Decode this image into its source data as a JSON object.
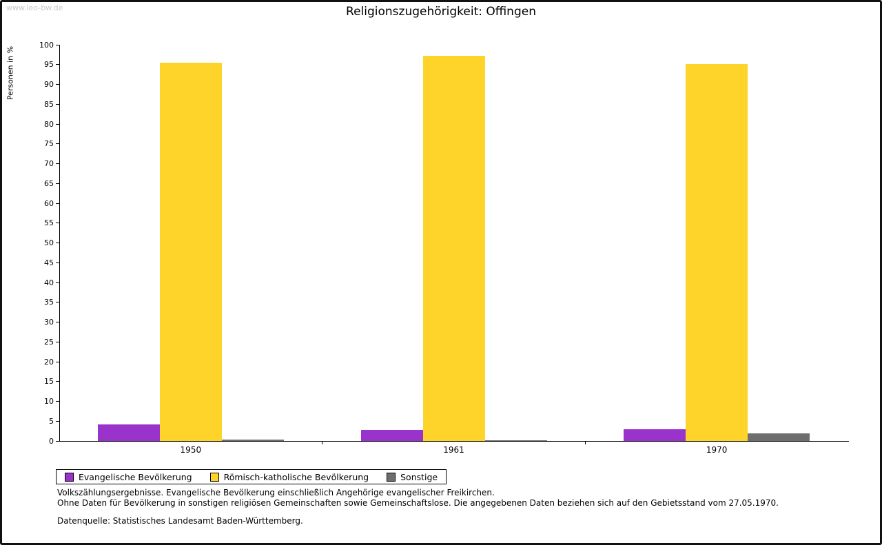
{
  "watermark": "www.leo-bw.de",
  "title": "Religionszugehörigkeit: Offingen",
  "chart_data": {
    "type": "bar",
    "title": "Religionszugehörigkeit: Offingen",
    "xlabel": "",
    "ylabel": "Personen in %",
    "ylim": [
      0,
      100
    ],
    "ytick_step": 5,
    "grid": false,
    "legend_position": "bottom",
    "categories": [
      "1950",
      "1961",
      "1970"
    ],
    "series": [
      {
        "name": "Evangelische Bevölkerung",
        "color": "#9933CC",
        "values": [
          4.2,
          2.7,
          2.9
        ]
      },
      {
        "name": "Römisch-katholische Bevölkerung",
        "color": "#FFD42A",
        "values": [
          95.5,
          97.2,
          95.2
        ]
      },
      {
        "name": "Sonstige",
        "color": "#6E6E6E",
        "values": [
          0.4,
          0.1,
          1.9
        ]
      }
    ]
  },
  "footnotes": {
    "line1": "Volkszählungsergebnisse. Evangelische Bevölkerung einschließlich Angehörige evangelischer Freikirchen.",
    "line2": "Ohne Daten für Bevölkerung in sonstigen religiösen Gemeinschaften sowie Gemeinschaftslose. Die angegebenen Daten beziehen sich auf den Gebietsstand vom 27.05.1970.",
    "source": "Datenquelle: Statistisches Landesamt Baden-Württemberg."
  }
}
